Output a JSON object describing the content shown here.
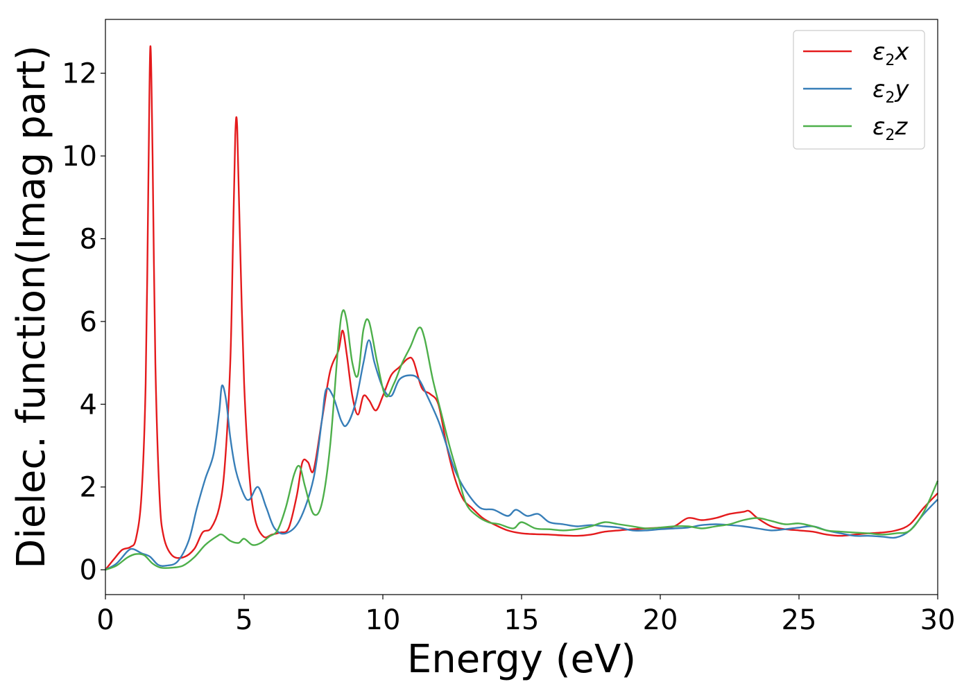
{
  "chart_data": {
    "type": "line",
    "title": "",
    "xlabel": "Energy (eV)",
    "ylabel": "Dielec. function(Imag part)",
    "xlim": [
      0,
      30
    ],
    "ylim": [
      -0.6,
      13.3
    ],
    "xticks": [
      0,
      5,
      10,
      15,
      20,
      25,
      30
    ],
    "yticks": [
      0,
      2,
      4,
      6,
      8,
      10,
      12
    ],
    "grid": false,
    "legend_position": "top-right",
    "series": [
      {
        "name": "ε₂x",
        "legend": {
          "base": "ε",
          "sub": "2",
          "axis": "x"
        },
        "color": "#e41a1c",
        "x": [
          0,
          0.3,
          0.6,
          0.9,
          1.1,
          1.3,
          1.45,
          1.55,
          1.62,
          1.7,
          1.8,
          1.95,
          2.1,
          2.4,
          2.8,
          3.2,
          3.5,
          3.8,
          4.1,
          4.3,
          4.5,
          4.6,
          4.68,
          4.75,
          4.85,
          5.0,
          5.2,
          5.4,
          5.7,
          6.0,
          6.3,
          6.6,
          6.9,
          7.1,
          7.3,
          7.5,
          7.8,
          8.1,
          8.4,
          8.55,
          8.7,
          8.9,
          9.1,
          9.3,
          9.5,
          9.75,
          10.0,
          10.3,
          10.6,
          10.9,
          11.1,
          11.4,
          11.7,
          12.0,
          12.3,
          12.6,
          12.9,
          13.2,
          13.6,
          14.0,
          14.5,
          15.0,
          15.5,
          16.0,
          16.5,
          17.0,
          17.5,
          18.0,
          18.5,
          19.0,
          19.5,
          20.0,
          20.5,
          21.0,
          21.5,
          22.0,
          22.5,
          23.0,
          23.2,
          23.5,
          24.0,
          24.5,
          25.0,
          25.5,
          26.0,
          26.5,
          27.0,
          27.5,
          28.0,
          28.5,
          29.0,
          29.5,
          30.0
        ],
        "y": [
          0.0,
          0.25,
          0.48,
          0.55,
          0.75,
          1.8,
          4.5,
          9.5,
          12.65,
          10.0,
          5.0,
          1.8,
          0.8,
          0.35,
          0.3,
          0.5,
          0.9,
          1.0,
          1.5,
          2.5,
          5.0,
          8.0,
          10.5,
          10.7,
          8.0,
          4.5,
          2.2,
          1.2,
          0.8,
          0.85,
          0.9,
          1.0,
          1.8,
          2.6,
          2.6,
          2.4,
          3.6,
          4.8,
          5.3,
          5.78,
          5.2,
          4.2,
          3.75,
          4.2,
          4.1,
          3.85,
          4.2,
          4.7,
          4.9,
          5.1,
          5.05,
          4.4,
          4.25,
          4.0,
          3.0,
          2.2,
          1.7,
          1.5,
          1.25,
          1.1,
          0.95,
          0.88,
          0.86,
          0.85,
          0.83,
          0.82,
          0.85,
          0.92,
          0.95,
          0.98,
          1.0,
          1.02,
          1.05,
          1.25,
          1.2,
          1.25,
          1.35,
          1.4,
          1.42,
          1.25,
          1.05,
          0.98,
          0.95,
          0.92,
          0.85,
          0.82,
          0.85,
          0.88,
          0.9,
          0.95,
          1.1,
          1.5,
          1.85
        ]
      },
      {
        "name": "ε₂y",
        "legend": {
          "base": "ε",
          "sub": "2",
          "axis": "y"
        },
        "color": "#377eb8",
        "x": [
          0,
          0.4,
          0.8,
          1.0,
          1.3,
          1.6,
          1.9,
          2.2,
          2.6,
          3.0,
          3.3,
          3.6,
          3.9,
          4.1,
          4.2,
          4.35,
          4.5,
          4.7,
          5.0,
          5.2,
          5.5,
          5.8,
          6.1,
          6.5,
          7.0,
          7.5,
          7.8,
          7.95,
          8.2,
          8.5,
          8.7,
          9.0,
          9.3,
          9.5,
          9.7,
          10.0,
          10.3,
          10.6,
          11.0,
          11.3,
          11.6,
          12.0,
          12.3,
          12.6,
          13.0,
          13.5,
          14.0,
          14.5,
          14.8,
          15.2,
          15.6,
          16.0,
          16.5,
          17.0,
          17.5,
          18.0,
          18.5,
          19.0,
          19.5,
          20.0,
          20.5,
          21.0,
          21.5,
          22.0,
          22.5,
          23.0,
          23.5,
          24.0,
          24.5,
          25.0,
          25.5,
          26.0,
          26.5,
          27.0,
          27.5,
          28.0,
          28.5,
          29.0,
          29.5,
          30.0
        ],
        "y": [
          0.0,
          0.15,
          0.45,
          0.5,
          0.4,
          0.32,
          0.12,
          0.1,
          0.2,
          0.7,
          1.5,
          2.2,
          2.8,
          3.8,
          4.45,
          4.1,
          3.2,
          2.4,
          1.8,
          1.7,
          2.0,
          1.5,
          1.0,
          0.88,
          1.2,
          2.2,
          3.6,
          4.35,
          4.2,
          3.6,
          3.5,
          4.0,
          5.0,
          5.55,
          5.0,
          4.4,
          4.2,
          4.6,
          4.7,
          4.6,
          4.2,
          3.6,
          3.0,
          2.4,
          1.9,
          1.5,
          1.45,
          1.3,
          1.45,
          1.3,
          1.35,
          1.15,
          1.1,
          1.05,
          1.08,
          1.05,
          1.02,
          0.95,
          0.95,
          0.98,
          1.0,
          1.02,
          1.08,
          1.1,
          1.08,
          1.05,
          1.0,
          0.95,
          0.98,
          1.02,
          1.05,
          0.95,
          0.88,
          0.82,
          0.82,
          0.8,
          0.78,
          0.95,
          1.35,
          1.7
        ]
      },
      {
        "name": "ε₂z",
        "legend": {
          "base": "ε",
          "sub": "2",
          "axis": "z"
        },
        "color": "#4daf4a",
        "x": [
          0,
          0.4,
          0.8,
          1.1,
          1.4,
          1.7,
          2.0,
          2.4,
          2.8,
          3.2,
          3.6,
          4.0,
          4.2,
          4.5,
          4.8,
          5.0,
          5.3,
          5.6,
          5.9,
          6.2,
          6.5,
          6.8,
          7.0,
          7.2,
          7.5,
          7.8,
          8.1,
          8.4,
          8.55,
          8.7,
          8.9,
          9.1,
          9.3,
          9.5,
          9.8,
          10.1,
          10.4,
          10.7,
          11.0,
          11.3,
          11.5,
          11.8,
          12.1,
          12.4,
          12.7,
          13.0,
          13.4,
          13.8,
          14.2,
          14.7,
          15.0,
          15.5,
          16.0,
          16.5,
          17.0,
          17.5,
          18.0,
          18.5,
          19.0,
          19.5,
          20.0,
          20.5,
          21.0,
          21.5,
          22.0,
          22.5,
          23.0,
          23.5,
          24.0,
          24.5,
          25.0,
          25.5,
          26.0,
          26.5,
          27.0,
          27.5,
          28.0,
          28.5,
          29.0,
          29.5,
          30.0
        ],
        "y": [
          0.0,
          0.1,
          0.3,
          0.38,
          0.35,
          0.15,
          0.05,
          0.05,
          0.1,
          0.3,
          0.6,
          0.8,
          0.85,
          0.7,
          0.65,
          0.75,
          0.6,
          0.65,
          0.8,
          0.95,
          1.5,
          2.3,
          2.5,
          2.0,
          1.35,
          1.6,
          3.0,
          5.5,
          6.25,
          6.0,
          5.0,
          4.7,
          5.8,
          6.0,
          5.0,
          4.2,
          4.5,
          5.0,
          5.4,
          5.85,
          5.6,
          4.6,
          3.8,
          3.0,
          2.3,
          1.6,
          1.3,
          1.15,
          1.1,
          1.0,
          1.15,
          1.0,
          0.98,
          0.95,
          0.98,
          1.05,
          1.15,
          1.1,
          1.05,
          1.0,
          1.02,
          1.05,
          1.05,
          1.0,
          1.05,
          1.1,
          1.2,
          1.25,
          1.18,
          1.1,
          1.12,
          1.05,
          0.95,
          0.92,
          0.9,
          0.88,
          0.85,
          0.88,
          0.95,
          1.4,
          2.15
        ]
      }
    ]
  }
}
